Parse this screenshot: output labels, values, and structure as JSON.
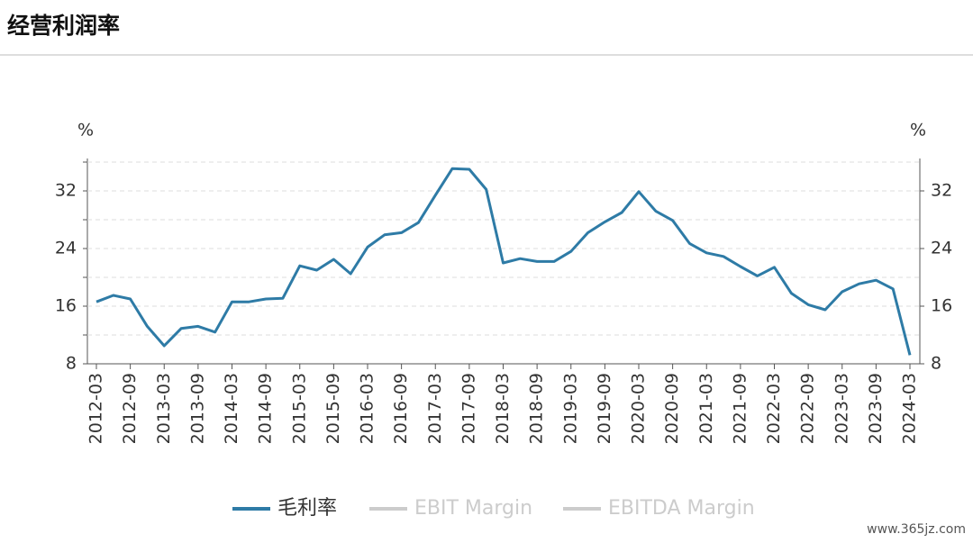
{
  "title": "经营利润率",
  "watermark": "www.365jz.com",
  "chart_data": {
    "type": "line",
    "ylabel": "%",
    "y2label": "%",
    "categories": [
      "2012-03",
      null,
      "2012-09",
      null,
      "2013-03",
      null,
      "2013-09",
      null,
      "2014-03",
      null,
      "2014-09",
      null,
      "2015-03",
      null,
      "2015-09",
      null,
      "2016-03",
      null,
      "2016-09",
      null,
      "2017-03",
      null,
      "2017-09",
      null,
      "2018-03",
      null,
      "2018-09",
      null,
      "2019-03",
      null,
      "2019-09",
      null,
      "2020-03",
      null,
      "2020-09",
      null,
      "2021-03",
      null,
      "2021-09",
      null,
      "2022-03",
      null,
      "2022-09",
      null,
      "2023-03",
      null,
      "2023-09",
      null,
      "2024-03"
    ],
    "series": [
      {
        "name": "毛利率",
        "color": "#2e7ba6",
        "values": [
          16.6,
          17.5,
          17.0,
          13.2,
          10.5,
          12.9,
          13.2,
          12.4,
          16.6,
          16.6,
          17.0,
          17.1,
          21.6,
          21.0,
          22.5,
          20.5,
          24.2,
          25.9,
          26.2,
          27.6,
          31.4,
          35.1,
          35.0,
          32.2,
          22.0,
          22.6,
          22.2,
          22.2,
          23.6,
          26.2,
          27.7,
          29.0,
          31.9,
          29.2,
          27.9,
          24.7,
          23.4,
          22.9,
          21.5,
          20.2,
          21.4,
          17.8,
          16.2,
          15.5,
          18.0,
          19.1,
          19.6,
          18.4,
          9.2
        ]
      },
      {
        "name": "EBIT Margin",
        "color": "#cccccc",
        "hidden": true,
        "values": [
          null,
          null,
          null,
          null,
          null,
          null,
          null,
          null,
          null,
          null,
          null,
          null,
          null,
          null,
          null,
          null,
          null,
          null,
          null,
          null,
          null,
          null,
          null,
          null,
          null,
          null,
          null,
          null,
          null,
          null,
          null,
          null,
          null,
          null,
          null,
          null,
          null,
          null,
          null,
          null,
          null,
          null,
          null,
          null,
          null,
          null,
          null,
          null,
          null
        ]
      },
      {
        "name": "EBITDA Margin",
        "color": "#cccccc",
        "hidden": true,
        "values": [
          null,
          null,
          null,
          null,
          null,
          null,
          null,
          null,
          null,
          null,
          null,
          null,
          null,
          null,
          null,
          null,
          null,
          null,
          null,
          null,
          null,
          null,
          null,
          null,
          null,
          null,
          null,
          null,
          null,
          null,
          null,
          null,
          null,
          null,
          null,
          null,
          null,
          null,
          null,
          null,
          null,
          null,
          null,
          null,
          null,
          null,
          null,
          null,
          null
        ]
      }
    ],
    "ylim": [
      8,
      36
    ],
    "yticks": [
      8,
      16,
      24,
      32
    ],
    "yminor": [
      12,
      20,
      28,
      36
    ],
    "y2lim": [
      8,
      36
    ],
    "y2ticks": [
      8,
      16,
      24,
      32
    ],
    "grid": true
  }
}
